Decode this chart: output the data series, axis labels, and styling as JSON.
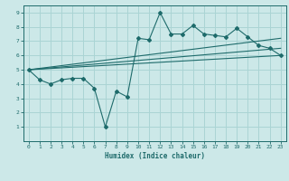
{
  "xlabel": "Humidex (Indice chaleur)",
  "xlim": [
    -0.5,
    23.5
  ],
  "ylim": [
    0,
    9.5
  ],
  "xticks": [
    0,
    1,
    2,
    3,
    4,
    5,
    6,
    7,
    8,
    9,
    10,
    11,
    12,
    13,
    14,
    15,
    16,
    17,
    18,
    19,
    20,
    21,
    22,
    23
  ],
  "yticks": [
    1,
    2,
    3,
    4,
    5,
    6,
    7,
    8,
    9
  ],
  "bg_color": "#cce8e8",
  "grid_color": "#aad4d4",
  "line_color": "#1e6b6b",
  "line1_x": [
    0,
    1,
    2,
    3,
    4,
    5,
    6,
    7,
    8,
    9,
    10,
    11,
    12,
    13,
    14,
    15,
    16,
    17,
    18,
    19,
    20,
    21,
    22,
    23
  ],
  "line1_y": [
    5.0,
    4.3,
    4.0,
    4.3,
    4.4,
    4.4,
    3.7,
    1.0,
    3.5,
    3.1,
    7.2,
    7.1,
    9.0,
    7.5,
    7.5,
    8.1,
    7.5,
    7.4,
    7.3,
    7.9,
    7.3,
    6.7,
    6.5,
    6.0
  ],
  "line2_x": [
    0,
    23
  ],
  "line2_y": [
    5.0,
    6.0
  ],
  "line3_x": [
    0,
    23
  ],
  "line3_y": [
    5.0,
    6.5
  ],
  "line4_x": [
    0,
    23
  ],
  "line4_y": [
    5.0,
    7.2
  ]
}
